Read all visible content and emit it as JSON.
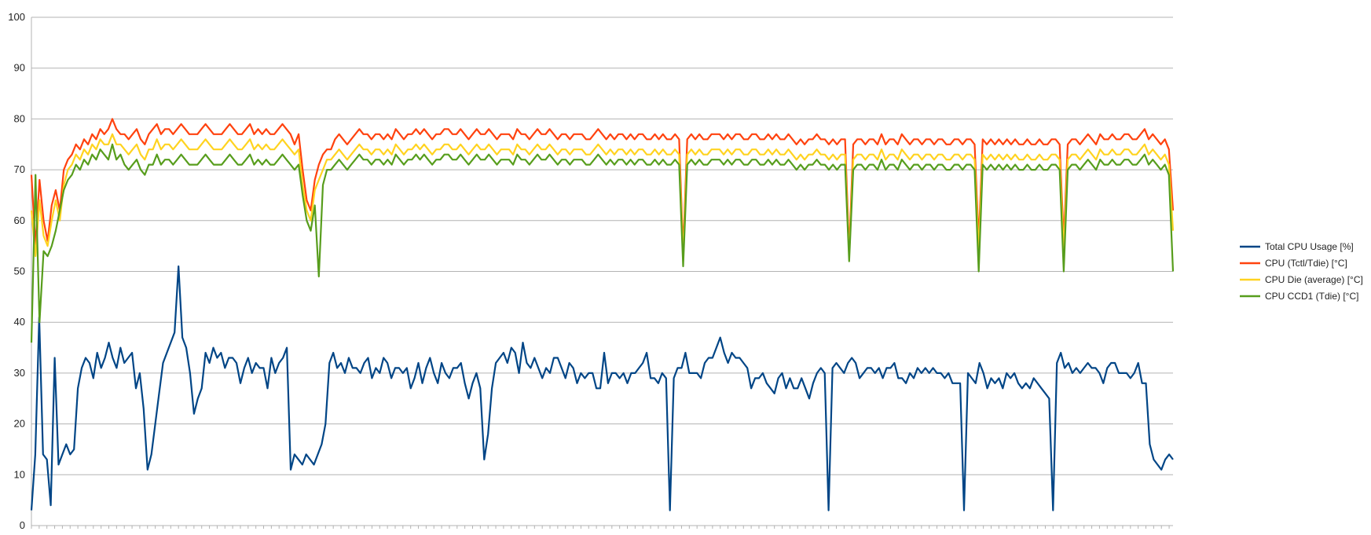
{
  "chart_data": {
    "type": "line",
    "title": "",
    "xlabel": "",
    "ylabel": "",
    "ylim": [
      0,
      100
    ],
    "yticks": [
      0,
      10,
      20,
      30,
      40,
      50,
      60,
      70,
      80,
      90,
      100
    ],
    "grid": true,
    "legend": "right",
    "series": [
      {
        "name": "Total CPU Usage [%]",
        "color": "#004586",
        "values": [
          3,
          14,
          41,
          14,
          13,
          4,
          33,
          12,
          14,
          16,
          14,
          15,
          27,
          31,
          33,
          32,
          29,
          34,
          31,
          33,
          36,
          33,
          31,
          35,
          32,
          33,
          34,
          27,
          30,
          23,
          11,
          14,
          20,
          26,
          32,
          34,
          36,
          38,
          51,
          37,
          35,
          30,
          22,
          25,
          27,
          34,
          32,
          35,
          33,
          34,
          31,
          33,
          33,
          32,
          28,
          31,
          33,
          30,
          32,
          31,
          31,
          27,
          33,
          30,
          32,
          33,
          35,
          11,
          14,
          13,
          12,
          14,
          13,
          12,
          14,
          16,
          20,
          32,
          34,
          31,
          32,
          30,
          33,
          31,
          31,
          30,
          32,
          33,
          29,
          31,
          30,
          33,
          32,
          29,
          31,
          31,
          30,
          31,
          27,
          29,
          32,
          28,
          31,
          33,
          30,
          28,
          32,
          30,
          29,
          31,
          31,
          32,
          28,
          25,
          28,
          30,
          27,
          13,
          18,
          27,
          32,
          33,
          34,
          32,
          35,
          34,
          30,
          36,
          32,
          31,
          33,
          31,
          29,
          31,
          30,
          33,
          33,
          31,
          29,
          32,
          31,
          28,
          30,
          29,
          30,
          30,
          27,
          27,
          34,
          28,
          30,
          30,
          29,
          30,
          28,
          30,
          30,
          31,
          32,
          34,
          29,
          29,
          28,
          30,
          29,
          3,
          29,
          31,
          31,
          34,
          30,
          30,
          30,
          29,
          32,
          33,
          33,
          35,
          37,
          34,
          32,
          34,
          33,
          33,
          32,
          31,
          27,
          29,
          29,
          30,
          28,
          27,
          26,
          29,
          30,
          27,
          29,
          27,
          27,
          29,
          27,
          25,
          28,
          30,
          31,
          30,
          3,
          31,
          32,
          31,
          30,
          32,
          33,
          32,
          29,
          30,
          31,
          31,
          30,
          31,
          29,
          31,
          31,
          32,
          29,
          29,
          28,
          30,
          29,
          31,
          30,
          31,
          30,
          31,
          30,
          30,
          29,
          30,
          28,
          28,
          28,
          3,
          30,
          29,
          28,
          32,
          30,
          27,
          29,
          28,
          29,
          27,
          30,
          29,
          30,
          28,
          27,
          28,
          27,
          29,
          28,
          27,
          26,
          25,
          3,
          32,
          34,
          31,
          32,
          30,
          31,
          30,
          31,
          32,
          31,
          31,
          30,
          28,
          31,
          32,
          32,
          30,
          30,
          30,
          29,
          30,
          32,
          28,
          28,
          16,
          13,
          12,
          11,
          13,
          14,
          13
        ]
      },
      {
        "name": "CPU (Tctl/Tdie) [°C]",
        "color": "#ff420e",
        "values": [
          69,
          55,
          68,
          60,
          56,
          63,
          66,
          62,
          70,
          72,
          73,
          75,
          74,
          76,
          75,
          77,
          76,
          78,
          77,
          78,
          80,
          78,
          77,
          77,
          76,
          77,
          78,
          76,
          75,
          77,
          78,
          79,
          77,
          78,
          78,
          77,
          78,
          79,
          78,
          77,
          77,
          77,
          78,
          79,
          78,
          77,
          77,
          77,
          78,
          79,
          78,
          77,
          77,
          78,
          79,
          77,
          78,
          77,
          78,
          77,
          77,
          78,
          79,
          78,
          77,
          75,
          77,
          70,
          64,
          62,
          68,
          71,
          73,
          74,
          74,
          76,
          77,
          76,
          75,
          76,
          77,
          78,
          77,
          77,
          76,
          77,
          77,
          76,
          77,
          76,
          78,
          77,
          76,
          77,
          77,
          78,
          77,
          78,
          77,
          76,
          77,
          77,
          78,
          78,
          77,
          77,
          78,
          77,
          76,
          77,
          78,
          77,
          77,
          78,
          77,
          76,
          77,
          77,
          77,
          76,
          78,
          77,
          77,
          76,
          77,
          78,
          77,
          77,
          78,
          77,
          76,
          77,
          77,
          76,
          77,
          77,
          77,
          76,
          76,
          77,
          78,
          77,
          76,
          77,
          76,
          77,
          77,
          76,
          77,
          76,
          77,
          77,
          76,
          76,
          77,
          76,
          77,
          76,
          76,
          77,
          76,
          54,
          76,
          77,
          76,
          77,
          76,
          76,
          77,
          77,
          77,
          76,
          77,
          76,
          77,
          77,
          76,
          76,
          77,
          77,
          76,
          76,
          77,
          76,
          77,
          76,
          76,
          77,
          76,
          75,
          76,
          75,
          76,
          76,
          77,
          76,
          76,
          75,
          76,
          75,
          76,
          76,
          54,
          75,
          76,
          76,
          75,
          76,
          76,
          75,
          77,
          75,
          76,
          76,
          75,
          77,
          76,
          75,
          76,
          76,
          75,
          76,
          76,
          75,
          76,
          76,
          75,
          75,
          76,
          76,
          75,
          76,
          76,
          75,
          56,
          76,
          75,
          76,
          75,
          76,
          75,
          76,
          75,
          76,
          75,
          75,
          76,
          75,
          75,
          76,
          75,
          75,
          76,
          76,
          75,
          56,
          75,
          76,
          76,
          75,
          76,
          77,
          76,
          75,
          77,
          76,
          76,
          77,
          76,
          76,
          77,
          77,
          76,
          76,
          77,
          78,
          76,
          77,
          76,
          75,
          76,
          74,
          62
        ]
      },
      {
        "name": "CPU Die (average) [°C]",
        "color": "#ffd320",
        "values": [
          62,
          53,
          64,
          57,
          55,
          60,
          64,
          60,
          67,
          70,
          71,
          73,
          72,
          74,
          73,
          75,
          74,
          76,
          75,
          75,
          77,
          75,
          75,
          74,
          73,
          74,
          75,
          73,
          72,
          74,
          74,
          76,
          74,
          75,
          75,
          74,
          75,
          76,
          75,
          74,
          74,
          74,
          75,
          76,
          75,
          74,
          74,
          74,
          75,
          76,
          75,
          74,
          74,
          75,
          76,
          74,
          75,
          74,
          75,
          74,
          74,
          75,
          76,
          75,
          74,
          73,
          74,
          67,
          62,
          60,
          66,
          68,
          70,
          72,
          72,
          73,
          74,
          73,
          72,
          73,
          74,
          75,
          74,
          74,
          73,
          74,
          74,
          73,
          74,
          73,
          75,
          74,
          73,
          74,
          74,
          75,
          74,
          75,
          74,
          73,
          74,
          74,
          75,
          75,
          74,
          74,
          75,
          74,
          73,
          74,
          75,
          74,
          74,
          75,
          74,
          73,
          74,
          74,
          74,
          73,
          75,
          74,
          74,
          73,
          74,
          75,
          74,
          74,
          75,
          74,
          73,
          74,
          74,
          73,
          74,
          74,
          74,
          73,
          73,
          74,
          75,
          74,
          73,
          74,
          73,
          74,
          74,
          73,
          74,
          73,
          74,
          74,
          73,
          73,
          74,
          73,
          74,
          73,
          73,
          74,
          73,
          53,
          73,
          74,
          73,
          74,
          73,
          73,
          74,
          74,
          74,
          73,
          74,
          73,
          74,
          74,
          73,
          73,
          74,
          74,
          73,
          73,
          74,
          73,
          74,
          73,
          73,
          74,
          73,
          72,
          73,
          72,
          73,
          73,
          74,
          73,
          73,
          72,
          73,
          72,
          73,
          73,
          53,
          72,
          73,
          73,
          72,
          73,
          73,
          72,
          74,
          72,
          73,
          73,
          72,
          74,
          73,
          72,
          73,
          73,
          72,
          73,
          73,
          72,
          73,
          73,
          72,
          72,
          73,
          73,
          72,
          73,
          73,
          72,
          54,
          73,
          72,
          73,
          72,
          73,
          72,
          73,
          72,
          73,
          72,
          72,
          73,
          72,
          72,
          73,
          72,
          72,
          73,
          73,
          72,
          54,
          72,
          73,
          73,
          72,
          73,
          74,
          73,
          72,
          74,
          73,
          73,
          74,
          73,
          73,
          74,
          74,
          73,
          73,
          74,
          75,
          73,
          74,
          73,
          72,
          73,
          71,
          58
        ]
      },
      {
        "name": "CPU CCD1 (Tdie) [°C]",
        "color": "#579d1c",
        "values": [
          36,
          69,
          40,
          54,
          53,
          55,
          58,
          62,
          66,
          68,
          69,
          71,
          70,
          72,
          71,
          73,
          72,
          74,
          73,
          72,
          75,
          72,
          73,
          71,
          70,
          71,
          72,
          70,
          69,
          71,
          71,
          73,
          71,
          72,
          72,
          71,
          72,
          73,
          72,
          71,
          71,
          71,
          72,
          73,
          72,
          71,
          71,
          71,
          72,
          73,
          72,
          71,
          71,
          72,
          73,
          71,
          72,
          71,
          72,
          71,
          71,
          72,
          73,
          72,
          71,
          70,
          71,
          65,
          60,
          58,
          63,
          49,
          67,
          70,
          70,
          71,
          72,
          71,
          70,
          71,
          72,
          73,
          72,
          72,
          71,
          72,
          72,
          71,
          72,
          71,
          73,
          72,
          71,
          72,
          72,
          73,
          72,
          73,
          72,
          71,
          72,
          72,
          73,
          73,
          72,
          72,
          73,
          72,
          71,
          72,
          73,
          72,
          72,
          73,
          72,
          71,
          72,
          72,
          72,
          71,
          73,
          72,
          72,
          71,
          72,
          73,
          72,
          72,
          73,
          72,
          71,
          72,
          72,
          71,
          72,
          72,
          72,
          71,
          71,
          72,
          73,
          72,
          71,
          72,
          71,
          72,
          72,
          71,
          72,
          71,
          72,
          72,
          71,
          71,
          72,
          71,
          72,
          71,
          71,
          72,
          71,
          51,
          71,
          72,
          71,
          72,
          71,
          71,
          72,
          72,
          72,
          71,
          72,
          71,
          72,
          72,
          71,
          71,
          72,
          72,
          71,
          71,
          72,
          71,
          72,
          71,
          71,
          72,
          71,
          70,
          71,
          70,
          71,
          71,
          72,
          71,
          71,
          70,
          71,
          70,
          71,
          71,
          52,
          70,
          71,
          71,
          70,
          71,
          71,
          70,
          72,
          70,
          71,
          71,
          70,
          72,
          71,
          70,
          71,
          71,
          70,
          71,
          71,
          70,
          71,
          71,
          70,
          70,
          71,
          71,
          70,
          71,
          71,
          70,
          50,
          71,
          70,
          71,
          70,
          71,
          70,
          71,
          70,
          71,
          70,
          70,
          71,
          70,
          70,
          71,
          70,
          70,
          71,
          71,
          70,
          50,
          70,
          71,
          71,
          70,
          71,
          72,
          71,
          70,
          72,
          71,
          71,
          72,
          71,
          71,
          72,
          72,
          71,
          71,
          72,
          73,
          71,
          72,
          71,
          70,
          71,
          69,
          50
        ]
      }
    ]
  }
}
